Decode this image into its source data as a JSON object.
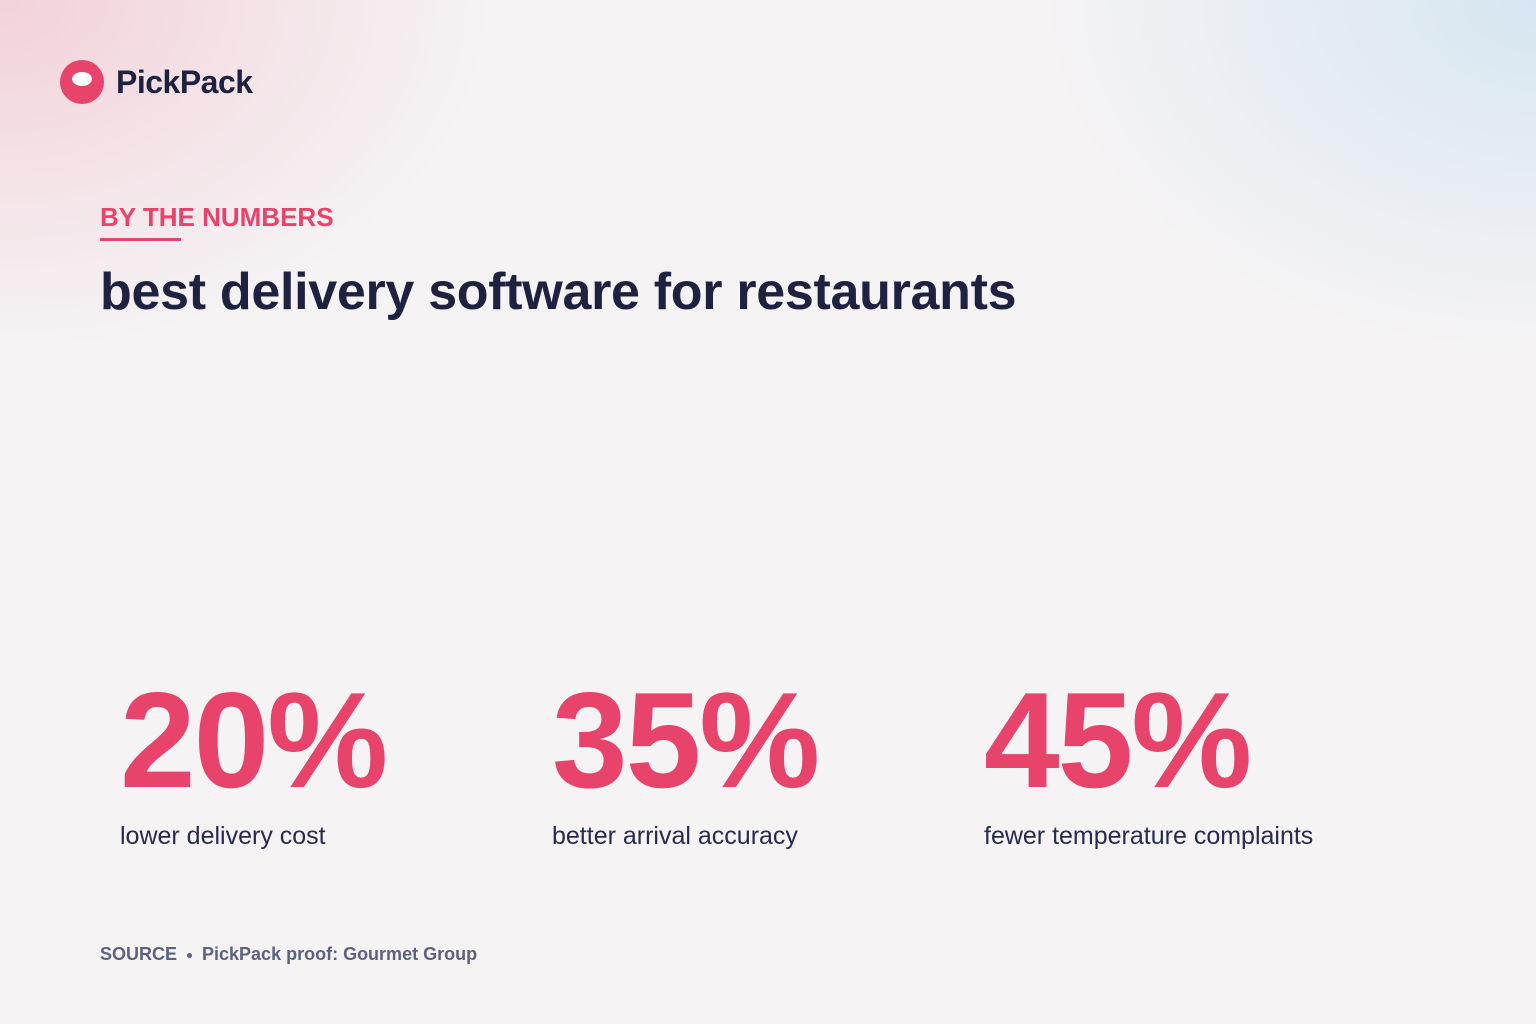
{
  "header": {
    "brand": "PickPack"
  },
  "section": {
    "eyebrow": "BY THE NUMBERS",
    "title": "best delivery software for restaurants"
  },
  "stats": [
    {
      "value": "20%",
      "label": "lower delivery cost"
    },
    {
      "value": "35%",
      "label": "better arrival accuracy"
    },
    {
      "value": "45%",
      "label": "fewer temperature complaints"
    }
  ],
  "footer": {
    "source_label": "SOURCE",
    "source": "PickPack proof: Gourmet Group"
  }
}
